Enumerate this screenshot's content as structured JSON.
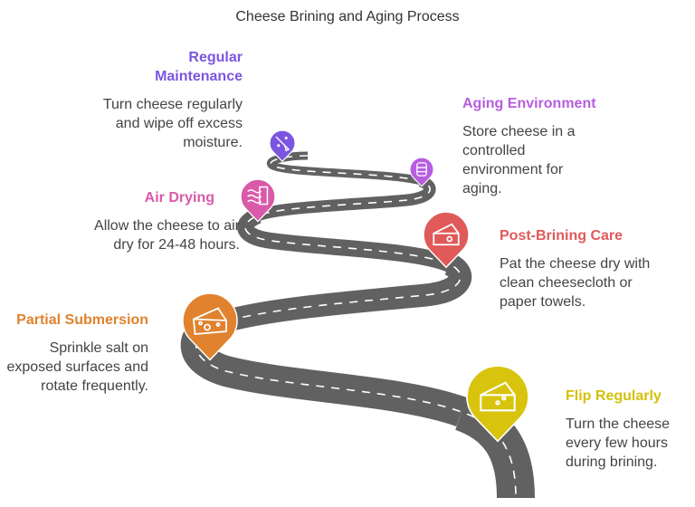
{
  "title": "Cheese Brining and Aging Process",
  "steps": [
    {
      "title": "Regular Maintenance",
      "body": "Turn cheese regularly and wipe off excess moisture.",
      "color": "#7b55e0",
      "icon": "cleaning-broom-icon"
    },
    {
      "title": "Aging Environment",
      "body": "Store cheese in a controlled environment for aging.",
      "color": "#b65ee0",
      "icon": "storage-barrel-icon"
    },
    {
      "title": "Air Drying",
      "body": "Allow the cheese to air dry for 24-48 hours.",
      "color": "#d95aa9",
      "icon": "air-flow-icon"
    },
    {
      "title": "Post-Brining Care",
      "body": "Pat the cheese dry with clean cheesecloth or paper towels.",
      "color": "#e05a5a",
      "icon": "cheese-icon"
    },
    {
      "title": "Partial Submersion",
      "body": "Sprinkle salt on exposed surfaces and rotate frequently.",
      "color": "#e0822e",
      "icon": "cheese-icon"
    },
    {
      "title": "Flip Regularly",
      "body": "Turn the cheese every few hours during brining.",
      "color": "#d8c40c",
      "icon": "cheese-icon"
    }
  ],
  "road_color": "#616161"
}
